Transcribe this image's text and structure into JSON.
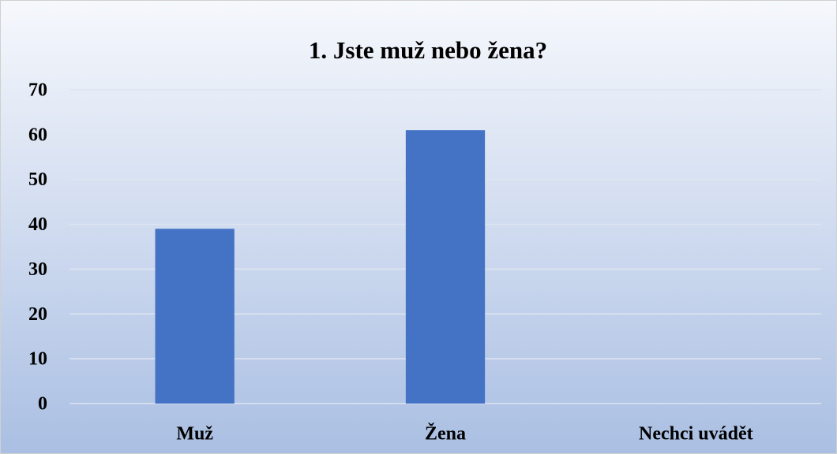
{
  "chart_data": {
    "type": "bar",
    "title": "1. Jste muž nebo žena?",
    "categories": [
      "Muž",
      "Žena",
      "Nechci uvádět"
    ],
    "values": [
      39,
      61,
      0
    ],
    "color": "#4472c4",
    "ylim": [
      0,
      70
    ],
    "yticks": [
      0,
      10,
      20,
      30,
      40,
      50,
      60,
      70
    ],
    "grid": true
  }
}
